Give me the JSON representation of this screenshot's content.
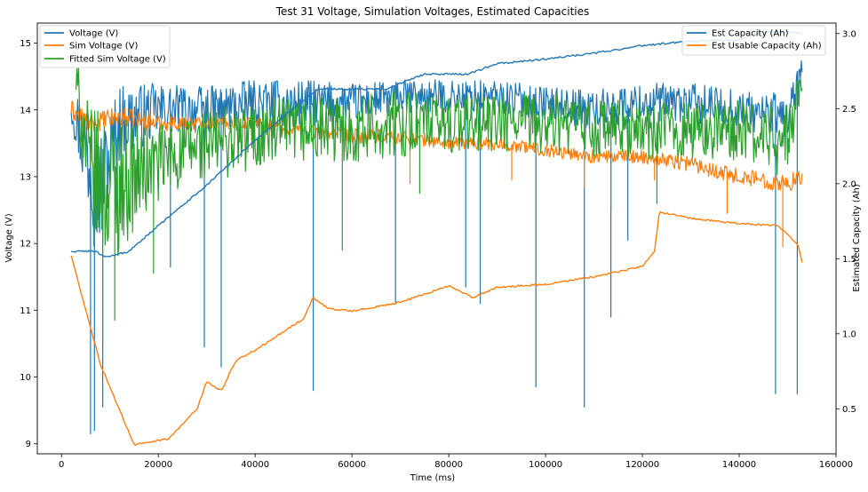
{
  "chart_data": {
    "type": "line",
    "title": "Test 31 Voltage, Simulation Voltages, Estimated Capacities",
    "xlabel": "Time (ms)",
    "ylabel_left": "Voltage (V)",
    "ylabel_right": "Estimated Capacity (Ah)",
    "xlim": [
      -5000,
      160000
    ],
    "ylim_left": [
      8.85,
      15.3
    ],
    "ylim_right": [
      0.2,
      3.07
    ],
    "xticks": [
      0,
      20000,
      40000,
      60000,
      80000,
      100000,
      120000,
      140000,
      160000
    ],
    "xtick_labels": [
      "0",
      "20000",
      "40000",
      "60000",
      "80000",
      "100000",
      "120000",
      "140000",
      "160000"
    ],
    "yticks_left": [
      9,
      10,
      11,
      12,
      13,
      14,
      15
    ],
    "yticks_right": [
      0.5,
      1.0,
      1.5,
      2.0,
      2.5,
      3.0
    ],
    "ytick_labels_right": [
      "0.5",
      "1.0",
      "1.5",
      "2.0",
      "2.5",
      "3.0"
    ],
    "legend_left": {
      "placement": "top-left",
      "entries": [
        "Voltage (V)",
        "Sim Voltage (V)",
        "Fitted Sim Voltage (V)"
      ]
    },
    "legend_right": {
      "placement": "top-right",
      "entries": [
        "Est Capacity (Ah)",
        "Est Usable Capacity (Ah)"
      ]
    },
    "series": [
      {
        "name": "Voltage (V)",
        "axis": "left",
        "color": "#1f77b4",
        "style": "noisy",
        "x": [
          2000,
          5000,
          8000,
          12000,
          20000,
          30000,
          40000,
          50000,
          60000,
          70000,
          80000,
          90000,
          100000,
          110000,
          120000,
          130000,
          140000,
          150000,
          153000
        ],
        "y": [
          14.1,
          13.4,
          12.8,
          13.8,
          14.0,
          14.0,
          14.1,
          14.1,
          14.1,
          14.2,
          14.2,
          14.2,
          14.1,
          14.0,
          14.1,
          14.1,
          14.0,
          13.9,
          14.6
        ],
        "amp": [
          0.3,
          0.8,
          0.9,
          0.6,
          0.4,
          0.35,
          0.35,
          0.35,
          0.3,
          0.25,
          0.25,
          0.25,
          0.25,
          0.3,
          0.3,
          0.3,
          0.3,
          0.35,
          0.2
        ],
        "dips": [
          [
            6000,
            9.15
          ],
          [
            6800,
            9.2
          ],
          [
            8500,
            9.55
          ],
          [
            22500,
            11.65
          ],
          [
            29500,
            10.45
          ],
          [
            33000,
            10.15
          ],
          [
            52000,
            9.8
          ],
          [
            69000,
            11.1
          ],
          [
            83500,
            11.35
          ],
          [
            86500,
            11.1
          ],
          [
            98000,
            9.85
          ],
          [
            108000,
            9.55
          ],
          [
            113500,
            10.9
          ],
          [
            117000,
            12.05
          ],
          [
            147500,
            9.75
          ],
          [
            152000,
            9.75
          ]
        ]
      },
      {
        "name": "Sim Voltage (V)",
        "axis": "left",
        "color": "#ff7f0e",
        "style": "noisy",
        "x": [
          2000,
          6000,
          12000,
          20000,
          30000,
          40000,
          50000,
          60000,
          70000,
          80000,
          90000,
          100000,
          110000,
          120000,
          130000,
          140000,
          150000,
          153000
        ],
        "y": [
          14.0,
          13.8,
          13.9,
          13.8,
          13.8,
          13.8,
          13.7,
          13.6,
          13.6,
          13.5,
          13.5,
          13.4,
          13.3,
          13.3,
          13.2,
          13.0,
          12.9,
          13.0
        ],
        "amp": [
          0.15,
          0.15,
          0.15,
          0.12,
          0.1,
          0.1,
          0.12,
          0.12,
          0.1,
          0.1,
          0.1,
          0.1,
          0.1,
          0.1,
          0.12,
          0.12,
          0.15,
          0.1
        ],
        "dips": [
          [
            72000,
            12.9
          ],
          [
            93000,
            12.95
          ],
          [
            108000,
            12.85
          ],
          [
            122500,
            12.95
          ],
          [
            137500,
            12.45
          ],
          [
            149000,
            11.95
          ]
        ]
      },
      {
        "name": "Fitted Sim Voltage (V)",
        "axis": "left",
        "color": "#2ca02c",
        "style": "noisy",
        "x": [
          3000,
          6000,
          10000,
          15000,
          20000,
          30000,
          40000,
          50000,
          60000,
          70000,
          80000,
          90000,
          100000,
          110000,
          120000,
          130000,
          140000,
          150000,
          153000
        ],
        "y": [
          14.4,
          13.0,
          12.8,
          13.0,
          13.2,
          13.5,
          13.6,
          13.7,
          13.7,
          13.8,
          13.8,
          13.8,
          13.8,
          13.7,
          13.7,
          13.7,
          13.7,
          13.5,
          14.5
        ],
        "amp": [
          0.4,
          1.0,
          1.2,
          0.8,
          0.6,
          0.55,
          0.55,
          0.5,
          0.5,
          0.5,
          0.45,
          0.45,
          0.45,
          0.45,
          0.45,
          0.45,
          0.45,
          0.6,
          0.2
        ],
        "dips": [
          [
            8500,
            10.5
          ],
          [
            11000,
            10.85
          ],
          [
            19000,
            11.55
          ],
          [
            58000,
            11.9
          ],
          [
            74000,
            12.75
          ],
          [
            113500,
            12.5
          ],
          [
            123000,
            12.6
          ]
        ]
      },
      {
        "name": "Est Capacity (Ah)",
        "axis": "right",
        "color": "#1f77b4",
        "style": "smooth",
        "x": [
          2000,
          7000,
          9000,
          14000,
          20000,
          30000,
          40000,
          49000,
          53000,
          67000,
          75000,
          84000,
          90000,
          100000,
          110000,
          120000,
          130000,
          140000,
          145000,
          150000,
          153000
        ],
        "y": [
          1.55,
          1.55,
          1.51,
          1.55,
          1.72,
          1.99,
          2.29,
          2.53,
          2.63,
          2.63,
          2.73,
          2.73,
          2.8,
          2.83,
          2.87,
          2.92,
          2.95,
          2.96,
          3.01,
          3.01,
          3.0
        ]
      },
      {
        "name": "Est Usable Capacity (Ah)",
        "axis": "right",
        "color": "#ff7f0e",
        "style": "smooth",
        "x": [
          2000,
          8000,
          15000,
          22000,
          28000,
          30000,
          33000,
          36000,
          40000,
          50000,
          52000,
          55000,
          60000,
          70000,
          80000,
          85000,
          90000,
          100000,
          110000,
          120000,
          122500,
          123500,
          130000,
          138000,
          148000,
          152000,
          153000
        ],
        "y": [
          1.52,
          0.8,
          0.26,
          0.3,
          0.5,
          0.68,
          0.62,
          0.82,
          0.89,
          1.1,
          1.24,
          1.17,
          1.15,
          1.21,
          1.32,
          1.24,
          1.31,
          1.33,
          1.38,
          1.45,
          1.55,
          1.81,
          1.77,
          1.74,
          1.72,
          1.6,
          1.48
        ]
      }
    ]
  }
}
